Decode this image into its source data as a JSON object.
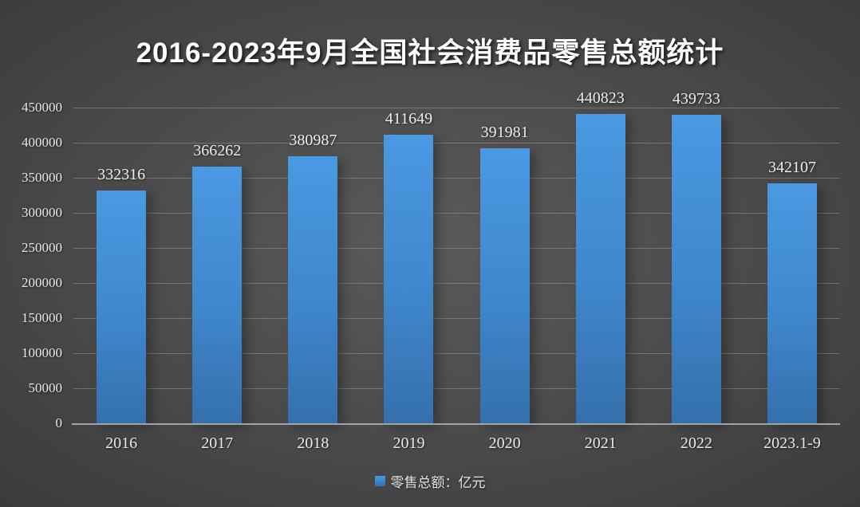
{
  "chart_data": {
    "type": "bar",
    "title": "2016-2023年9月全国社会消费品零售总额统计",
    "categories": [
      "2016",
      "2017",
      "2018",
      "2019",
      "2020",
      "2021",
      "2022",
      "2023.1-9"
    ],
    "values": [
      332316,
      366262,
      380987,
      411649,
      391981,
      440823,
      439733,
      342107
    ],
    "series_name": "零售总额：亿元",
    "legend_entries": [
      "零售总额：亿元"
    ],
    "legend_position": "bottom",
    "xlabel": "",
    "ylabel": "",
    "ylim": [
      0,
      450000
    ],
    "ytick_step": 50000,
    "ytick_labels": [
      "0",
      "50000",
      "100000",
      "150000",
      "200000",
      "250000",
      "300000",
      "350000",
      "400000",
      "450000"
    ],
    "grid": true,
    "data_labels_shown": true,
    "colors": {
      "bar_top": "#4a99e2",
      "bar_bottom": "#3470ad",
      "background_center": "#5a5a5a",
      "background_edge": "#232323",
      "gridline": "#c3c3c3",
      "axis_line": "#a0a4a8",
      "title_text": "#ffffff",
      "label_text": "#e8e8e8"
    }
  }
}
